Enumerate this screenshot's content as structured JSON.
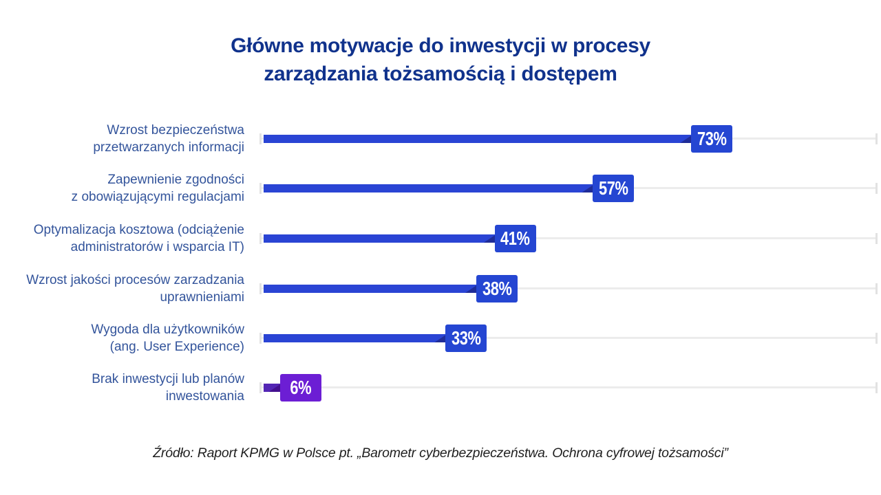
{
  "title": {
    "line1": "Główne motywacje do inwestycji w procesy",
    "line2": "zarządzania tożsamością i dostępem"
  },
  "footer": {
    "text": "Źródło: Raport KPMG w Polsce pt. „Barometr cyberbezpieczeństwa. Ochrona cyfrowej tożsamości”"
  },
  "palette": {
    "title": "#10328c",
    "label": "#33549b",
    "footer": "#1f1f1f",
    "track": "#ececec",
    "tick": "#e2e2e2"
  },
  "chart_data": {
    "type": "bar",
    "orientation": "horizontal",
    "title": "Główne motywacje do inwestycji w procesy zarządzania tożsamością i dostępem",
    "categories": [
      "Wzrost bezpieczeństwa przetwarzanych informacji",
      "Zapewnienie zgodności z obowiązującymi regulacjami",
      "Optymalizacja kosztowa (odciążenie administratorów i wsparcia IT)",
      "Wzrost jakości procesów zarzadzania uprawnieniami",
      "Wygoda dla użytkowników (ang. User Experience)",
      "Brak inwestycji lub planów inwestowania"
    ],
    "category_lines": [
      [
        "Wzrost bezpieczeństwa",
        "przetwarzanych informacji"
      ],
      [
        "Zapewnienie zgodności",
        "z obowiązującymi regulacjami"
      ],
      [
        "Optymalizacja kosztowa (odciążenie",
        "administratorów i wsparcia IT)"
      ],
      [
        "Wzrost jakości procesów zarzadzania",
        "uprawnieniami"
      ],
      [
        "Wygoda dla użytkowników",
        "(ang. User Experience)"
      ],
      [
        "Brak inwestycji lub planów",
        "inwestowania"
      ]
    ],
    "values": [
      73,
      57,
      41,
      38,
      33,
      6
    ],
    "value_labels": [
      "73%",
      "57%",
      "41%",
      "38%",
      "33%",
      "6%"
    ],
    "xlim": [
      0,
      100
    ],
    "grid": false,
    "legend": false,
    "bar_colors": [
      "#2a44d4",
      "#2a44d4",
      "#2a44d4",
      "#2a44d4",
      "#2a44d4",
      "#5326b4"
    ],
    "badge_colors": [
      "#2546d2",
      "#2546d2",
      "#2546d2",
      "#2546d2",
      "#2546d2",
      "#6c1ed4"
    ],
    "wedge_colors": [
      "#1f2c98",
      "#1f2c98",
      "#1f2c98",
      "#1f2c98",
      "#1f2c98",
      "#44108f"
    ],
    "source_note": "Źródło: Raport KPMG w Polsce pt. „Barometr cyberbezpieczeństwa. Ochrona cyfrowej tożsamości”"
  }
}
